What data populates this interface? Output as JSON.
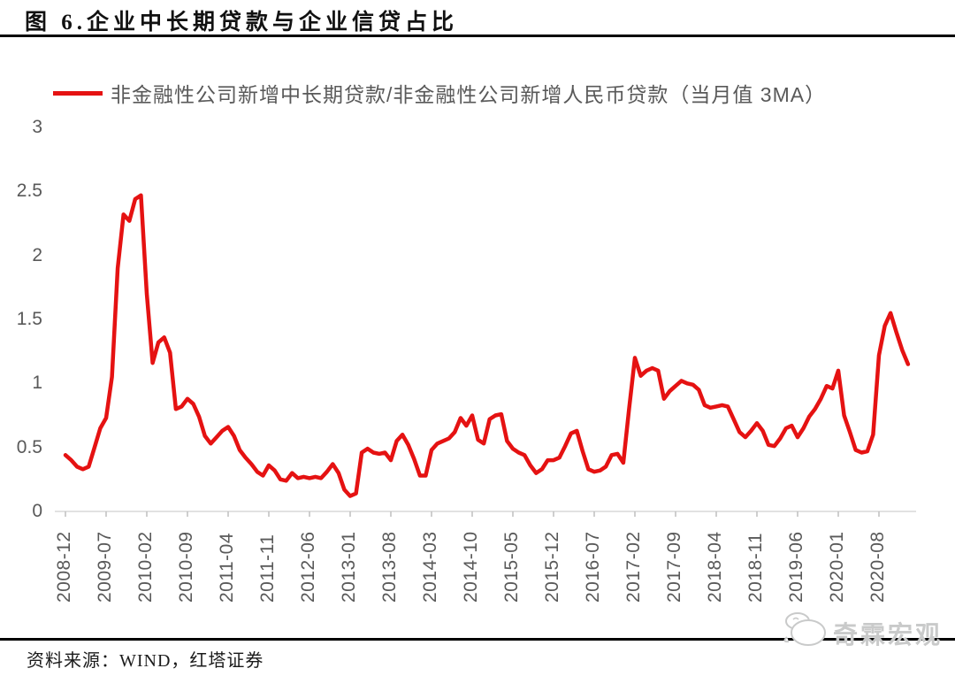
{
  "page": {
    "title": "图 6.企业中长期贷款与企业信贷占比",
    "source": "资料来源：WIND，红塔证券",
    "watermark": "奇霖宏观"
  },
  "chart_data": {
    "type": "line",
    "title": "图 6.企业中长期贷款与企业信贷占比",
    "legend_position": "top-left",
    "grid": false,
    "background": "#ffffff",
    "axis_label_color": "#595959",
    "baseline_color": "#d9d9d9",
    "tick_mark_color": "#bfbfbf",
    "y_axis": {
      "min": 0,
      "max": 3,
      "ticks": [
        0,
        0.5,
        1,
        1.5,
        2,
        2.5,
        3
      ]
    },
    "x_axis": {
      "tick_labels": [
        "2008-12",
        "2009-07",
        "2010-02",
        "2010-09",
        "2011-04",
        "2011-11",
        "2012-06",
        "2013-01",
        "2013-08",
        "2014-03",
        "2014-10",
        "2015-05",
        "2015-12",
        "2016-07",
        "2017-02",
        "2017-09",
        "2018-04",
        "2018-11",
        "2019-06",
        "2020-01",
        "2020-08"
      ],
      "tick_interval_months": 7,
      "label_rotation_deg": 90
    },
    "series": [
      {
        "name": "非金融性公司新增中长期贷款/非金融性公司新增人民币贷款（当月值 3MA）",
        "color": "#e51212",
        "start_month": "2008-12",
        "frequency": "monthly",
        "values": [
          0.44,
          0.4,
          0.35,
          0.33,
          0.35,
          0.5,
          0.65,
          0.73,
          1.05,
          1.9,
          2.32,
          2.27,
          2.44,
          2.47,
          1.7,
          1.16,
          1.32,
          1.36,
          1.24,
          0.8,
          0.82,
          0.88,
          0.84,
          0.74,
          0.59,
          0.53,
          0.58,
          0.63,
          0.66,
          0.59,
          0.48,
          0.42,
          0.37,
          0.31,
          0.28,
          0.36,
          0.32,
          0.25,
          0.24,
          0.3,
          0.26,
          0.27,
          0.26,
          0.27,
          0.26,
          0.31,
          0.37,
          0.3,
          0.17,
          0.12,
          0.14,
          0.46,
          0.49,
          0.46,
          0.45,
          0.46,
          0.4,
          0.55,
          0.6,
          0.52,
          0.41,
          0.28,
          0.28,
          0.48,
          0.53,
          0.55,
          0.57,
          0.62,
          0.73,
          0.67,
          0.75,
          0.56,
          0.53,
          0.72,
          0.75,
          0.76,
          0.55,
          0.49,
          0.46,
          0.44,
          0.36,
          0.3,
          0.33,
          0.4,
          0.4,
          0.42,
          0.51,
          0.61,
          0.63,
          0.47,
          0.33,
          0.31,
          0.32,
          0.35,
          0.44,
          0.45,
          0.38,
          0.8,
          1.2,
          1.06,
          1.1,
          1.12,
          1.1,
          0.88,
          0.94,
          0.98,
          1.02,
          1.0,
          0.99,
          0.95,
          0.83,
          0.81,
          0.82,
          0.83,
          0.82,
          0.72,
          0.62,
          0.58,
          0.63,
          0.69,
          0.63,
          0.52,
          0.51,
          0.57,
          0.65,
          0.67,
          0.58,
          0.65,
          0.74,
          0.8,
          0.88,
          0.98,
          0.96,
          1.1,
          0.75,
          0.62,
          0.48,
          0.46,
          0.47,
          0.6,
          1.22,
          1.45,
          1.55,
          1.4,
          1.26,
          1.15
        ]
      }
    ]
  }
}
